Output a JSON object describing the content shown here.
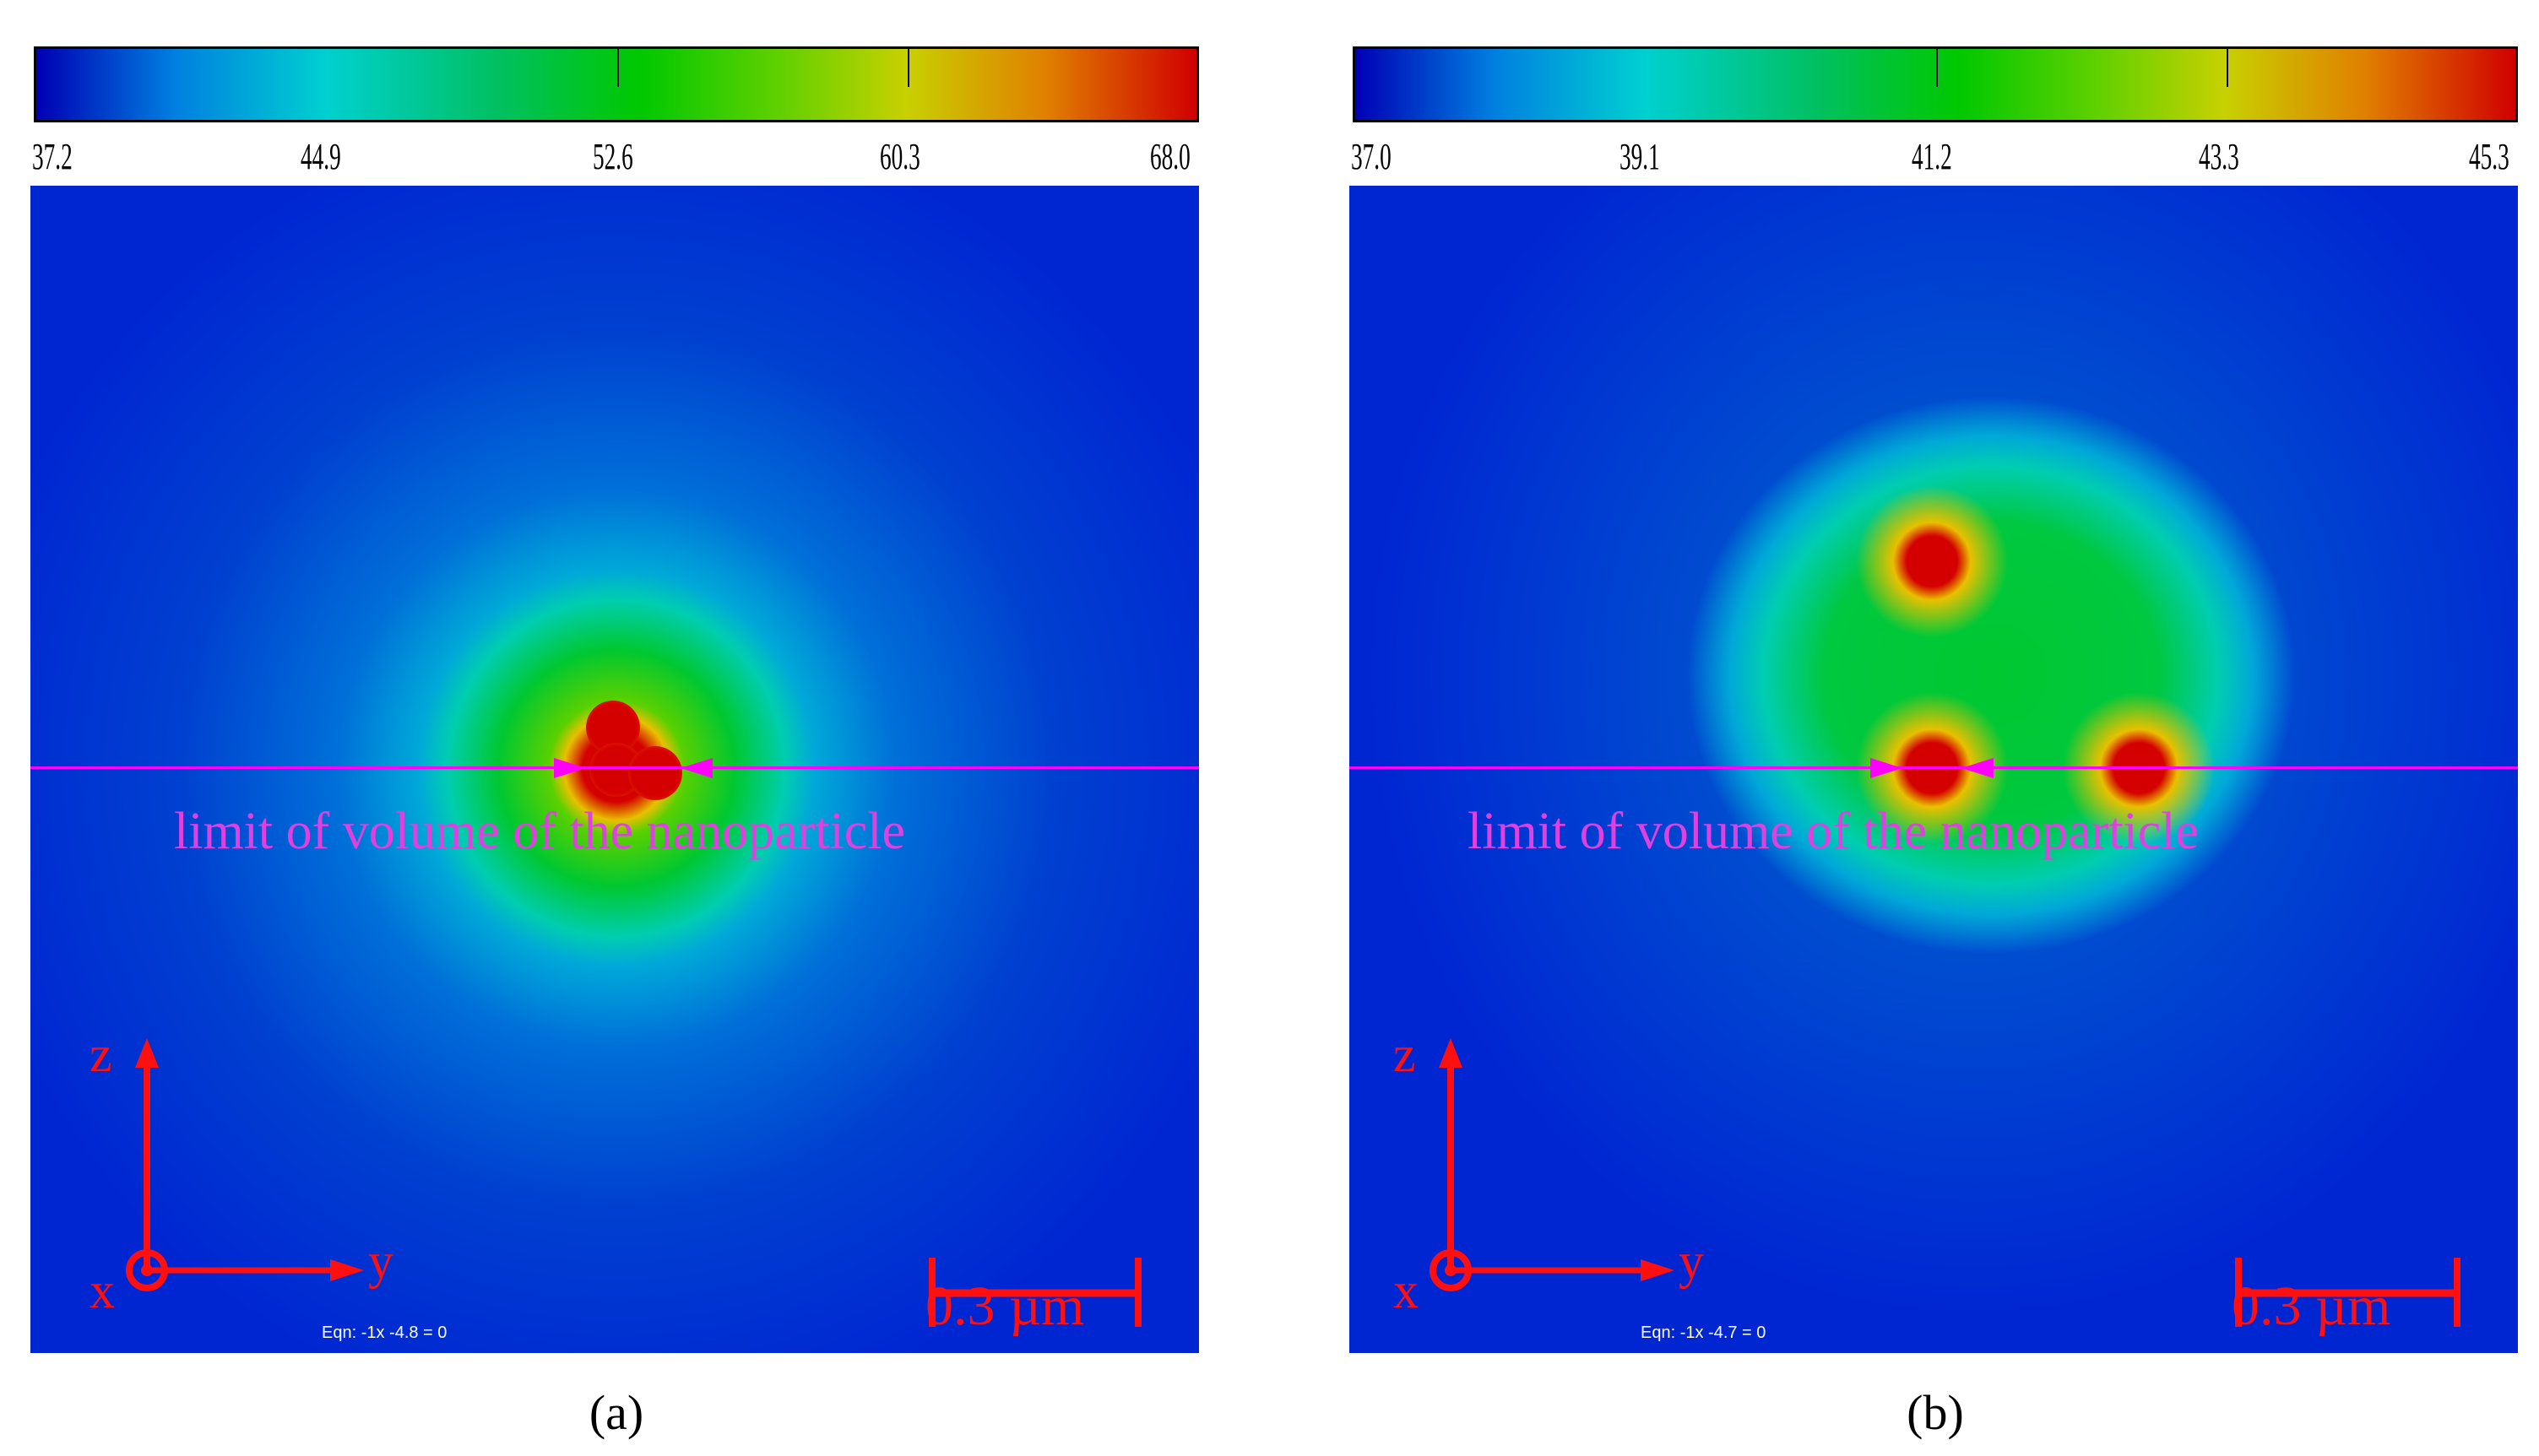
{
  "panels": [
    {
      "caption": "(a)",
      "colorbar_labels": [
        "37.2",
        "44.9",
        "52.6",
        "60.3",
        "68.0"
      ],
      "limit_text": "limit of volume of the nanoparticle",
      "eqn": "Eqn:  -1x -4.8 = 0",
      "scale_bar": "0.3 µm",
      "axes": {
        "z": "z",
        "y": "y",
        "x": "x"
      }
    },
    {
      "caption": "(b)",
      "colorbar_labels": [
        "37.0",
        "39.1",
        "41.2",
        "43.3",
        "45.3"
      ],
      "limit_text": "limit of volume of the nanoparticle",
      "eqn": "Eqn:  -1x -4.7 = 0",
      "scale_bar": "0.3 µm",
      "axes": {
        "z": "z",
        "y": "y",
        "x": "x"
      }
    }
  ],
  "colors": {
    "limit_line": "#ff00ff",
    "axes": "#ff1010",
    "background_field": "#0026d2",
    "hot_spot": "#d40000"
  }
}
